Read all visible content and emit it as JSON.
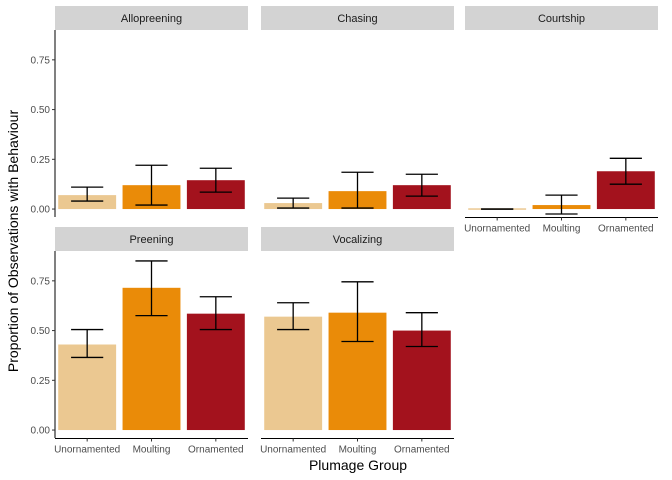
{
  "chart_data": {
    "type": "bar",
    "facet_layout": "wrap",
    "xlabel": "Plumage Group",
    "ylabel": "Proportion of Observations with Behaviour",
    "categories": [
      "Unornamented",
      "Moulting",
      "Ornamented"
    ],
    "yticks": [
      "0.00",
      "0.25",
      "0.50",
      "0.75"
    ],
    "colors": {
      "Unornamented": "#ebc891",
      "Moulting": "#ea8b08",
      "Ornamented": "#a3121d",
      "strip": "#d3d3d3"
    },
    "grid": false,
    "legend": "none",
    "panels": [
      {
        "title": "Allopreening",
        "values": [
          0.07,
          0.12,
          0.145
        ],
        "error_low": [
          0.04,
          0.02,
          0.085
        ],
        "error_high": [
          0.11,
          0.22,
          0.205
        ]
      },
      {
        "title": "Chasing",
        "values": [
          0.03,
          0.09,
          0.12
        ],
        "error_low": [
          0.005,
          0.005,
          0.065
        ],
        "error_high": [
          0.055,
          0.185,
          0.175
        ]
      },
      {
        "title": "Courtship",
        "values": [
          0.0,
          0.02,
          0.19
        ],
        "error_low": [
          0.0,
          -0.025,
          0.125
        ],
        "error_high": [
          0.0,
          0.07,
          0.255
        ]
      },
      {
        "title": "Preening",
        "values": [
          0.43,
          0.715,
          0.585
        ],
        "error_low": [
          0.365,
          0.575,
          0.505
        ],
        "error_high": [
          0.505,
          0.85,
          0.67
        ]
      },
      {
        "title": "Vocalizing",
        "values": [
          0.57,
          0.59,
          0.5
        ],
        "error_low": [
          0.505,
          0.445,
          0.42
        ],
        "error_high": [
          0.64,
          0.745,
          0.59
        ]
      }
    ],
    "ylim": [
      -0.04,
      0.9
    ]
  }
}
